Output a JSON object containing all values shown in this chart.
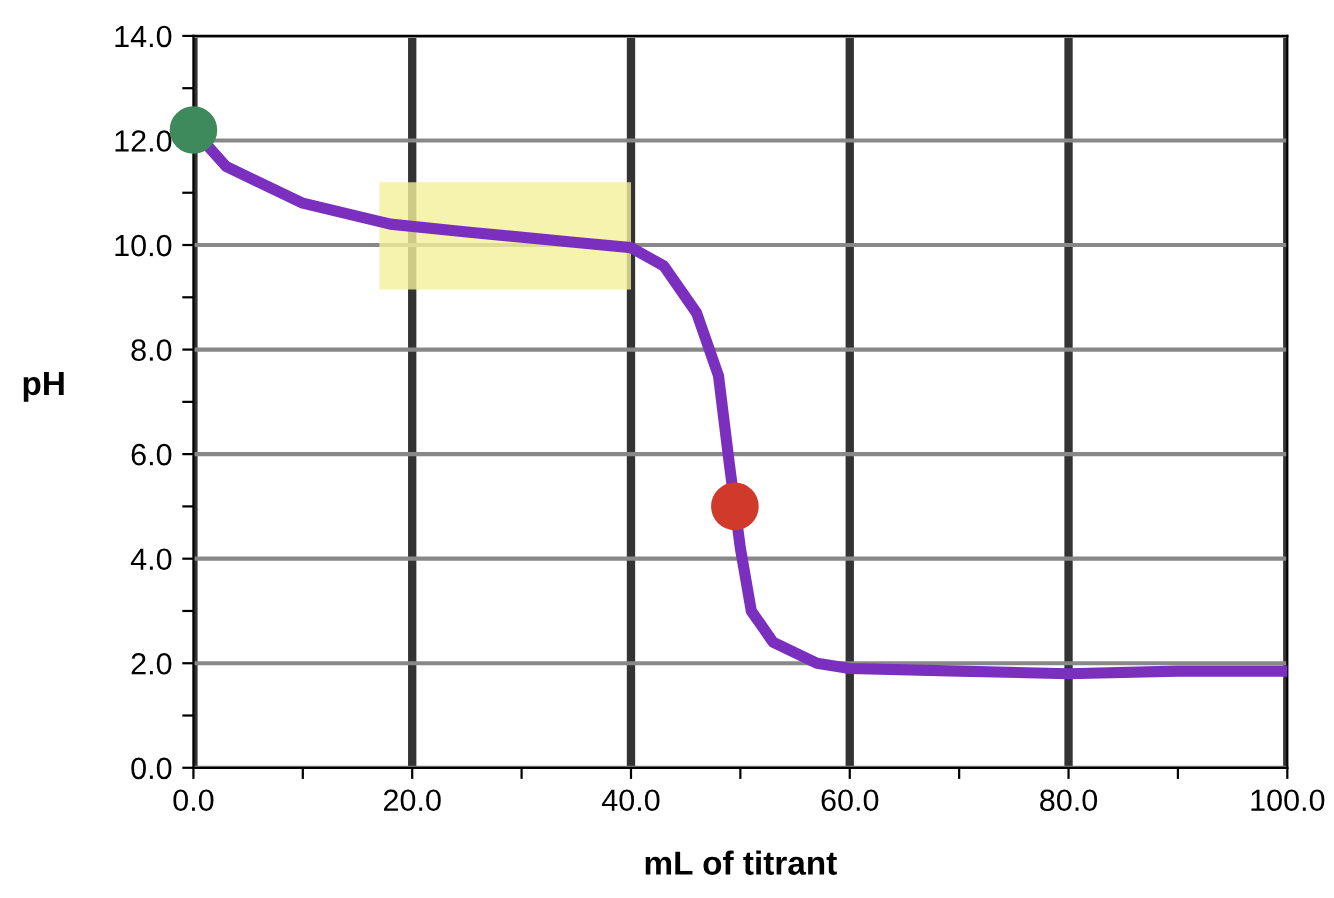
{
  "chart_data": {
    "type": "line",
    "xlabel": "mL of titrant",
    "ylabel": "pH",
    "xlim": [
      0,
      100
    ],
    "ylim": [
      0,
      14
    ],
    "xticks": [
      {
        "value": 0,
        "label": "0.0"
      },
      {
        "value": 10,
        "label": null
      },
      {
        "value": 20,
        "label": "20.0"
      },
      {
        "value": 30,
        "label": null
      },
      {
        "value": 40,
        "label": "40.0"
      },
      {
        "value": 50,
        "label": null
      },
      {
        "value": 60,
        "label": "60.0"
      },
      {
        "value": 70,
        "label": null
      },
      {
        "value": 80,
        "label": "80.0"
      },
      {
        "value": 90,
        "label": null
      },
      {
        "value": 100,
        "label": "100.0"
      }
    ],
    "yticks": [
      {
        "value": 0,
        "label": "0.0"
      },
      {
        "value": 1,
        "label": null
      },
      {
        "value": 2,
        "label": "2.0"
      },
      {
        "value": 3,
        "label": null
      },
      {
        "value": 4,
        "label": "4.0"
      },
      {
        "value": 5,
        "label": null
      },
      {
        "value": 6,
        "label": "6.0"
      },
      {
        "value": 7,
        "label": null
      },
      {
        "value": 8,
        "label": "8.0"
      },
      {
        "value": 9,
        "label": null
      },
      {
        "value": 10,
        "label": "10.0"
      },
      {
        "value": 11,
        "label": null
      },
      {
        "value": 12,
        "label": "12.0"
      },
      {
        "value": 13,
        "label": null
      },
      {
        "value": 14,
        "label": "14.0"
      }
    ],
    "grid": true,
    "bands": [
      {
        "axis": "x",
        "from": 17,
        "to": 40,
        "color": "#f3f09a"
      }
    ],
    "series": [
      {
        "color": "#7b2fbe",
        "marker": "none",
        "line_style": "solid",
        "x": [
          0,
          3,
          10,
          18,
          25,
          35,
          40,
          43,
          46,
          48,
          49,
          50,
          51,
          53,
          57,
          60,
          70,
          80,
          90,
          100
        ],
        "values": [
          12.2,
          11.5,
          10.8,
          10.4,
          10.25,
          10.05,
          9.95,
          9.6,
          8.7,
          7.5,
          5.8,
          4.2,
          3.0,
          2.4,
          2.0,
          1.9,
          1.85,
          1.8,
          1.85,
          1.85
        ]
      },
      {
        "type": "scatter",
        "colors": [
          "#3e8a5c",
          "#d03a2a"
        ],
        "marker": "circle",
        "x": [
          0,
          49.5
        ],
        "values": [
          12.2,
          5.0
        ]
      }
    ]
  }
}
